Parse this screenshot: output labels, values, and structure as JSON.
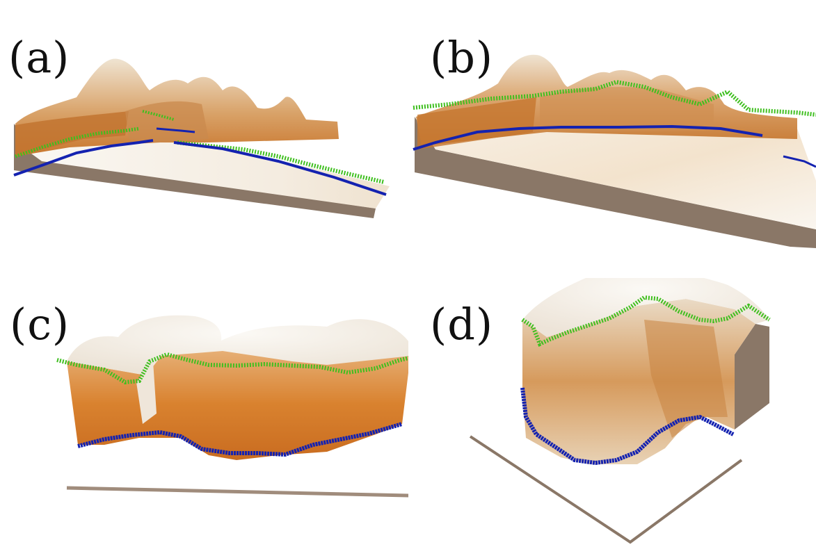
{
  "figure": {
    "panels": [
      {
        "label": "(a)"
      },
      {
        "label": "(b)"
      },
      {
        "label": "(c)"
      },
      {
        "label": "(d)"
      }
    ]
  },
  "colors": {
    "terrain_light": "#f2ece2",
    "terrain_orange": "#d9822f",
    "terrain_brown": "#b9763a",
    "base_slab": "#8a7767",
    "green_line": "#3fbf1f",
    "blue_line": "#1422b0"
  }
}
